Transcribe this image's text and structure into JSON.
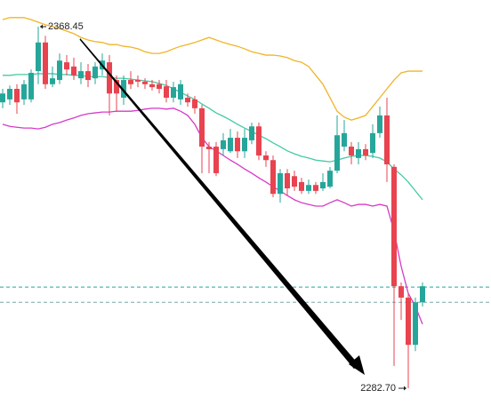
{
  "chart_data": {
    "type": "candlestick",
    "ylim": [
      2276.6,
      2374.77
    ],
    "up_color": "#26a69a",
    "down_color": "#e8434f",
    "open": [
      2350.5,
      2351.2,
      2353.7,
      2351.2,
      2351.2,
      2357.9,
      2364.7,
      2354.8,
      2355.8,
      2360.0,
      2359.0,
      2356.2,
      2357.9,
      2356.2,
      2358.3,
      2360.0,
      2355.8,
      2351.6,
      2355.8,
      2355.8,
      2355.4,
      2354.8,
      2354.8,
      2354.3,
      2351.6,
      2351.2,
      2351.6,
      2351.2,
      2349.1,
      2340.0,
      2340.0,
      2339.4,
      2338.9,
      2342.1,
      2338.9,
      2341.5,
      2344.8,
      2337.9,
      2336.8,
      2328.8,
      2333.7,
      2333.0,
      2331.6,
      2329.5,
      2330.9,
      2330.1,
      2330.5,
      2334.3,
      2340.0,
      2340.0,
      2337.3,
      2339.4,
      2338.5,
      2343.2,
      2347.4,
      2335.2,
      2306.9,
      2304.2,
      2293.0,
      2303.1
    ],
    "high": [
      2353.7,
      2354.5,
      2354.8,
      2355.8,
      2358.3,
      2368.45,
      2366.3,
      2359.0,
      2362.1,
      2361.7,
      2361.1,
      2360.0,
      2359.6,
      2360.0,
      2362.1,
      2361.7,
      2356.9,
      2356.9,
      2357.9,
      2356.9,
      2356.2,
      2355.8,
      2355.8,
      2355.8,
      2355.4,
      2355.8,
      2352.6,
      2352.0,
      2349.9,
      2341.1,
      2341.1,
      2343.2,
      2344.2,
      2343.6,
      2344.2,
      2345.7,
      2345.7,
      2338.9,
      2337.9,
      2334.7,
      2334.7,
      2334.3,
      2332.6,
      2332.2,
      2331.6,
      2333.7,
      2335.2,
      2347.4,
      2346.3,
      2341.1,
      2341.1,
      2340.6,
      2345.3,
      2349.5,
      2351.6,
      2335.8,
      2307.8,
      2305.2,
      2304.2,
      2307.8
    ],
    "low": [
      2349.1,
      2349.9,
      2347.8,
      2349.9,
      2350.5,
      2354.8,
      2353.7,
      2354.1,
      2354.8,
      2356.9,
      2355.8,
      2354.8,
      2354.1,
      2354.8,
      2356.9,
      2347.4,
      2348.4,
      2349.9,
      2353.7,
      2354.1,
      2353.7,
      2353.3,
      2352.6,
      2350.5,
      2350.5,
      2349.9,
      2349.5,
      2347.8,
      2333.7,
      2333.7,
      2333.0,
      2337.9,
      2338.5,
      2337.3,
      2337.3,
      2340.6,
      2336.8,
      2335.2,
      2328.0,
      2326.7,
      2328.4,
      2329.5,
      2328.8,
      2328.8,
      2328.8,
      2329.5,
      2330.1,
      2333.7,
      2338.9,
      2335.8,
      2335.8,
      2336.8,
      2337.3,
      2342.1,
      2331.6,
      2288.0,
      2298.9,
      2282.7,
      2291.5,
      2302.1
    ],
    "close": [
      2352.6,
      2353.7,
      2350.5,
      2354.8,
      2357.5,
      2364.7,
      2354.8,
      2356.2,
      2360.4,
      2358.3,
      2356.9,
      2357.9,
      2355.8,
      2359.0,
      2360.4,
      2352.6,
      2352.6,
      2355.8,
      2354.8,
      2355.4,
      2354.8,
      2354.1,
      2353.7,
      2351.6,
      2354.1,
      2354.8,
      2350.5,
      2349.1,
      2340.0,
      2339.4,
      2333.7,
      2341.5,
      2342.1,
      2338.9,
      2342.1,
      2344.8,
      2337.9,
      2336.8,
      2328.8,
      2333.7,
      2330.1,
      2330.5,
      2329.5,
      2330.9,
      2329.5,
      2331.6,
      2334.3,
      2342.7,
      2343.2,
      2337.9,
      2339.4,
      2337.9,
      2343.2,
      2347.4,
      2335.8,
      2306.9,
      2304.2,
      2293.0,
      2303.1,
      2306.9
    ],
    "bands": [
      {
        "color": "#f0b429",
        "values": [
          2370.1,
          2370.6,
          2370.6,
          2370.6,
          2370.1,
          2369.5,
          2368.9,
          2368.5,
          2368.0,
          2367.4,
          2366.8,
          2365.9,
          2365.3,
          2364.9,
          2364.7,
          2364.2,
          2364.2,
          2363.8,
          2363.6,
          2363.2,
          2362.5,
          2362.1,
          2362.1,
          2362.5,
          2363.2,
          2363.8,
          2364.2,
          2364.7,
          2365.3,
          2365.9,
          2365.3,
          2364.7,
          2364.2,
          2363.8,
          2363.2,
          2362.5,
          2362.1,
          2361.7,
          2361.7,
          2361.5,
          2361.1,
          2360.4,
          2360.0,
          2359.0,
          2356.9,
          2354.8,
          2351.6,
          2348.4,
          2347.0,
          2346.3,
          2346.8,
          2347.4,
          2349.5,
          2351.6,
          2353.7,
          2355.8,
          2357.5,
          2357.9,
          2357.9,
          2357.9
        ]
      },
      {
        "color": "#45c9a5",
        "values": [
          2356.9,
          2356.9,
          2357.1,
          2357.1,
          2357.1,
          2357.3,
          2357.3,
          2357.3,
          2357.1,
          2357.1,
          2356.9,
          2356.9,
          2356.6,
          2356.6,
          2356.6,
          2356.4,
          2356.2,
          2356.2,
          2356.0,
          2355.8,
          2355.6,
          2355.4,
          2355.0,
          2354.5,
          2353.7,
          2352.9,
          2352.0,
          2351.2,
          2350.1,
          2349.1,
          2348.0,
          2347.2,
          2346.3,
          2345.3,
          2344.4,
          2343.6,
          2342.7,
          2341.9,
          2340.9,
          2340.0,
          2339.0,
          2338.3,
          2337.7,
          2337.3,
          2336.8,
          2336.6,
          2336.4,
          2336.8,
          2337.3,
          2337.7,
          2337.9,
          2337.9,
          2337.7,
          2337.3,
          2336.4,
          2334.7,
          2333.3,
          2331.6,
          2329.5,
          2327.4
        ]
      },
      {
        "color": "#d63ac8",
        "values": [
          2345.3,
          2344.8,
          2344.6,
          2344.4,
          2344.4,
          2344.2,
          2344.6,
          2345.3,
          2345.7,
          2346.3,
          2346.8,
          2347.4,
          2347.8,
          2348.0,
          2348.2,
          2348.2,
          2348.4,
          2348.4,
          2348.4,
          2348.6,
          2348.9,
          2349.1,
          2349.1,
          2348.9,
          2349.1,
          2348.4,
          2347.4,
          2345.3,
          2342.1,
          2340.0,
          2339.0,
          2337.9,
          2336.8,
          2335.8,
          2334.7,
          2333.7,
          2332.6,
          2331.6,
          2330.5,
          2329.5,
          2328.4,
          2327.4,
          2326.7,
          2326.3,
          2325.9,
          2325.9,
          2326.7,
          2327.4,
          2326.7,
          2325.9,
          2326.3,
          2326.3,
          2325.9,
          2326.3,
          2325.9,
          2320.0,
          2311.6,
          2305.2,
          2302.1,
          2297.9
        ]
      }
    ],
    "price_lines": [
      {
        "value": 2306.7,
        "color": "#26a69a"
      },
      {
        "value": 2303.1,
        "color": "#7aa8a8"
      }
    ],
    "max_label": "2368.45",
    "min_label": "2282.70"
  }
}
